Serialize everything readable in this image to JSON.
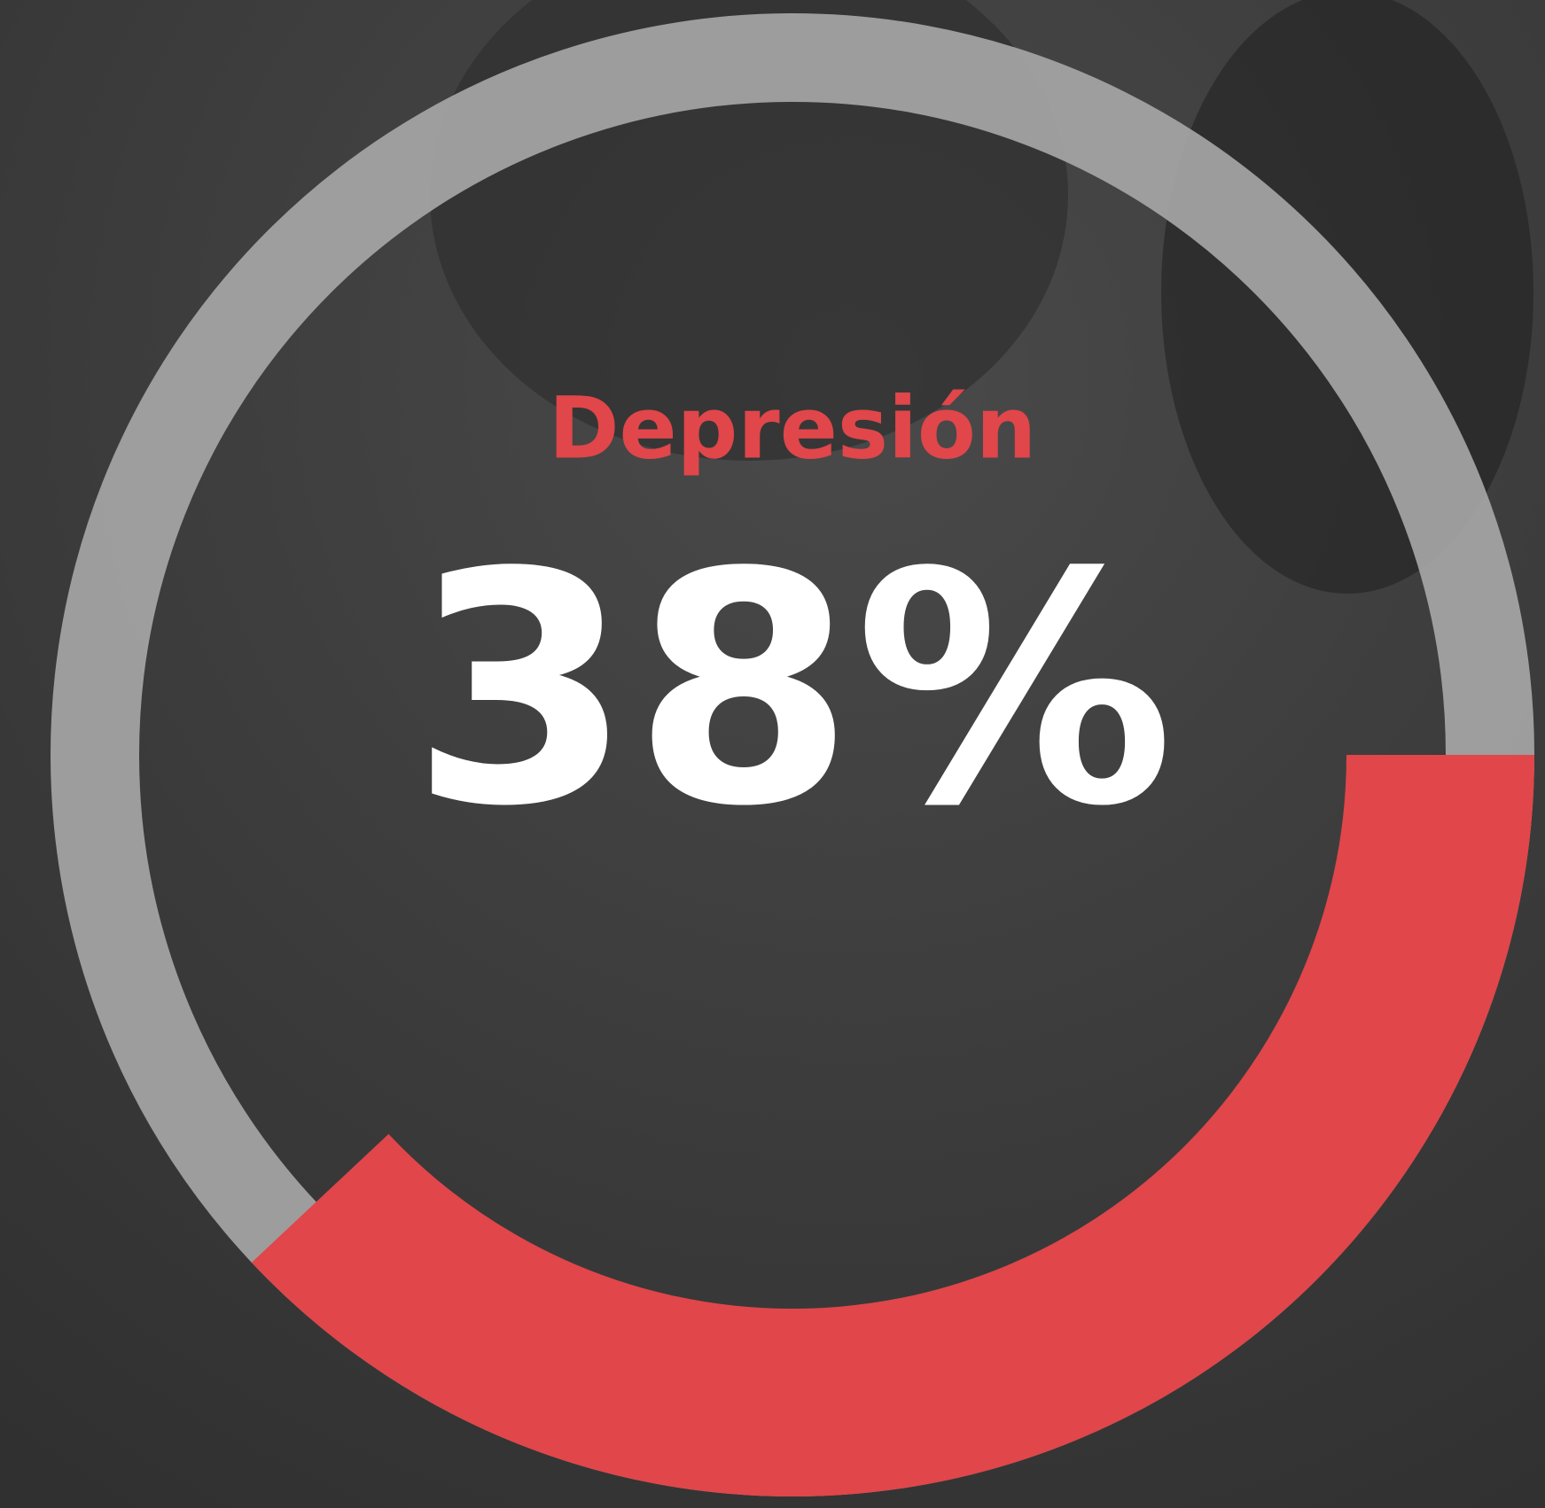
{
  "chart_data": {
    "type": "ring",
    "title": "Depresión",
    "values": [
      38
    ],
    "value_labels": [
      "38%"
    ],
    "ylim": [
      0,
      100
    ],
    "color": "#e0464a",
    "track_color": "#a9a9a9"
  }
}
